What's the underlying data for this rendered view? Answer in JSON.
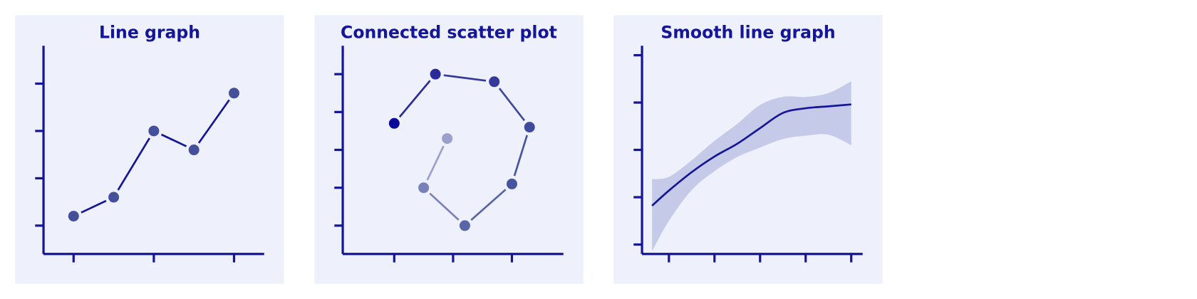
{
  "chart_data": [
    {
      "type": "line",
      "title": "Line graph",
      "x": [
        1,
        2,
        3,
        4,
        5
      ],
      "values": [
        1.2,
        1.6,
        3,
        2.6,
        3.8
      ],
      "color": "#45509a",
      "line_color": "#15159a",
      "xlim": [
        0.25,
        5.75
      ],
      "ylim": [
        0.4,
        4.8
      ],
      "xticks": [
        1,
        3,
        5
      ],
      "yticks": [
        1,
        2,
        3,
        4
      ]
    },
    {
      "type": "scatter",
      "connected": true,
      "title": "Connected scatter plot",
      "x": [
        1,
        1.7,
        2.7,
        3.3,
        3,
        2.2,
        1.5,
        1.9
      ],
      "values": [
        3.7,
        5,
        4.8,
        3.6,
        2.1,
        1,
        2,
        3.3
      ],
      "colors": [
        "#0a0a9a",
        "#2a2a98",
        "#35399a",
        "#3e4a9a",
        "#45559e",
        "#5865a8",
        "#7a80b8",
        "#9a9fcc"
      ],
      "xlim": [
        0.125,
        3.875
      ],
      "ylim": [
        0.25,
        5.75
      ],
      "xticks": [
        1,
        2,
        3
      ],
      "yticks": [
        1,
        2,
        3,
        4,
        5
      ]
    },
    {
      "type": "line",
      "smooth": true,
      "title": "Smooth line graph",
      "x": [
        0.63,
        1,
        1.5,
        2,
        2.5,
        3,
        3.5,
        4,
        4.5,
        5
      ],
      "values": [
        1.82,
        2.14,
        2.53,
        2.86,
        3.13,
        3.46,
        3.78,
        3.88,
        3.92,
        3.96
      ],
      "lower": [
        0.86,
        1.5,
        2.15,
        2.55,
        2.85,
        3.05,
        3.23,
        3.3,
        3.32,
        3.1
      ],
      "upper": [
        2.38,
        2.43,
        2.78,
        3.19,
        3.55,
        3.95,
        4.12,
        4.12,
        4.2,
        4.45
      ],
      "color": "#15159a",
      "band_color": "#c5cae9",
      "xlim": [
        0.41,
        5.25
      ],
      "ylim": [
        0.8,
        5.2
      ],
      "xticks": [
        1,
        2,
        3,
        4,
        5
      ],
      "yticks": [
        1,
        2,
        3,
        4,
        5
      ]
    }
  ]
}
